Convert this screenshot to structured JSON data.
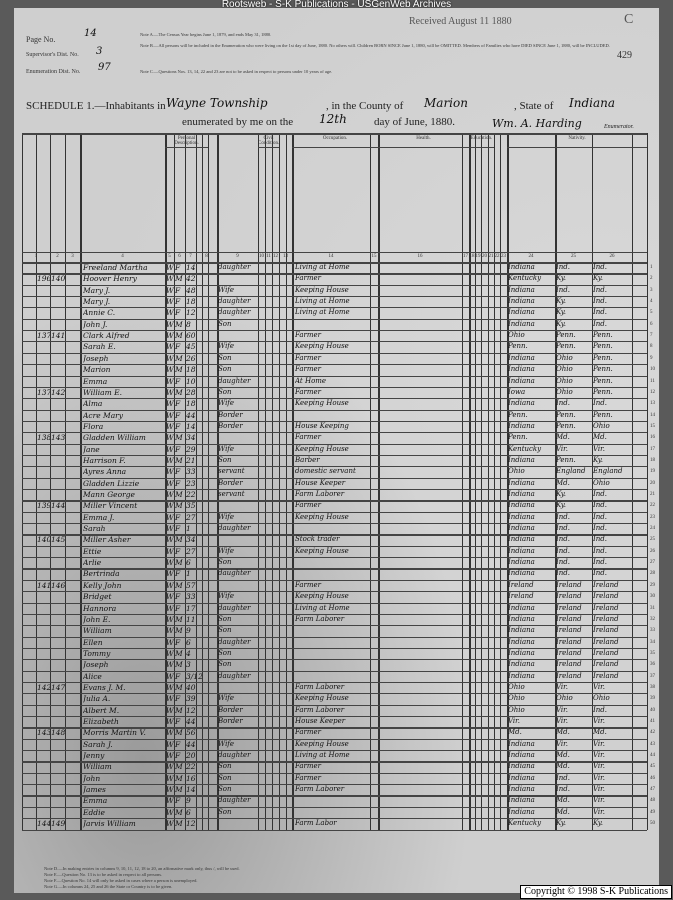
{
  "site_banner": "Rootsweb - S-K Publications - USGenWeb Archives",
  "copyright": "Copyright © 1998 S-K Publications",
  "header": {
    "page_no_label": "Page No.",
    "page_no": "14",
    "supervisor_label": "Supervisor's Dist. No.",
    "supervisor_no": "3",
    "enumeration_label": "Enumeration Dist. No.",
    "enumeration_no": "97",
    "received_stamp": "Received August 11 1880",
    "corner_letter": "C",
    "stamped_page": "429",
    "note_a": "Note A.—The Census Year begins June 1, 1879, and ends May 31, 1880.",
    "note_b": "Note B.—All persons will be included in the Enumeration who were living on the 1st day of June, 1880. No others will. Children BORN SINCE June 1, 1880, will be OMITTED. Members of Families who have DIED SINCE June 1, 1880, will be INCLUDED.",
    "note_c": "Note C.—Questions Nos. 13, 14, 22 and 23 are not to be asked in respect to persons under 10 years of age.",
    "schedule_label": "SCHEDULE 1.—Inhabitants in",
    "township": "Wayne Township",
    "county_label": ", in the County of",
    "county": "Marion",
    "state_label": ", State of",
    "state": "Indiana",
    "enumerated_label": "enumerated by me on the",
    "day": "12th",
    "date_suffix": "day of June, 1880.",
    "enumerator_signature": "Wm. A. Harding",
    "enumerator_label": "Enumerator."
  },
  "column_groups": {
    "personal": "Personal Description.",
    "civil": "Civil Condition.",
    "occupation": "Occupation.",
    "health": "Health.",
    "education": "Education.",
    "nativity": "Nativity."
  },
  "column_numbers": [
    "1",
    "2",
    "3",
    "4",
    "5",
    "6",
    "7",
    "8",
    "9",
    "10",
    "11",
    "12",
    "13",
    "14",
    "15",
    "16",
    "17",
    "18",
    "19",
    "20",
    "21",
    "22",
    "23",
    "24",
    "25",
    "26"
  ],
  "rows": [
    [
      "",
      "",
      "Freeland Martha",
      "W",
      "F",
      "14",
      "daughter",
      "Living at Home",
      "Indiana",
      "Ind.",
      "Ind."
    ],
    [
      "196",
      "140",
      "Hoover Henry",
      "W",
      "M",
      "42",
      "",
      "Farmer",
      "Kentucky",
      "Ky.",
      "Ky."
    ],
    [
      "",
      "",
      "Mary J.",
      "W",
      "F",
      "48",
      "Wife",
      "Keeping House",
      "Indiana",
      "Ind.",
      "Ind."
    ],
    [
      "",
      "",
      "Mary J.",
      "W",
      "F",
      "18",
      "daughter",
      "Living at Home",
      "Indiana",
      "Ky.",
      "Ind."
    ],
    [
      "",
      "",
      "Annie C.",
      "W",
      "F",
      "12",
      "daughter",
      "Living at Home",
      "Indiana",
      "Ky.",
      "Ind."
    ],
    [
      "",
      "",
      "John J.",
      "W",
      "M",
      "8",
      "Son",
      "",
      "Indiana",
      "Ky.",
      "Ind."
    ],
    [
      "137",
      "141",
      "Clark Alfred",
      "W",
      "M",
      "60",
      "",
      "Farmer",
      "Ohio",
      "Penn.",
      "Penn."
    ],
    [
      "",
      "",
      "Sarah E.",
      "W",
      "F",
      "45",
      "Wife",
      "Keeping House",
      "Penn.",
      "Penn.",
      "Penn."
    ],
    [
      "",
      "",
      "Joseph",
      "W",
      "M",
      "26",
      "Son",
      "Farmer",
      "Indiana",
      "Ohio",
      "Penn."
    ],
    [
      "",
      "",
      "Marion",
      "W",
      "M",
      "18",
      "Son",
      "Farmer",
      "Indiana",
      "Ohio",
      "Penn."
    ],
    [
      "",
      "",
      "Emma",
      "W",
      "F",
      "10",
      "daughter",
      "At Home",
      "Indiana",
      "Ohio",
      "Penn."
    ],
    [
      "137",
      "142",
      "William E.",
      "W",
      "M",
      "28",
      "Son",
      "Farmer",
      "Iowa",
      "Ohio",
      "Penn."
    ],
    [
      "",
      "",
      "Alma",
      "W",
      "F",
      "18",
      "Wife",
      "Keeping House",
      "Indiana",
      "Ind.",
      "Ind."
    ],
    [
      "",
      "",
      "Acre Mary",
      "W",
      "F",
      "44",
      "Border",
      "",
      "Penn.",
      "Penn.",
      "Penn."
    ],
    [
      "",
      "",
      "Flora",
      "W",
      "F",
      "14",
      "Border",
      "House Keeping",
      "Indiana",
      "Penn.",
      "Ohio"
    ],
    [
      "138",
      "143",
      "Gladden William",
      "W",
      "M",
      "34",
      "",
      "Farmer",
      "Penn.",
      "Md.",
      "Md."
    ],
    [
      "",
      "",
      "Jane",
      "W",
      "F",
      "29",
      "Wife",
      "Keeping House",
      "Kentucky",
      "Vir.",
      "Vir."
    ],
    [
      "",
      "",
      "Harrison F.",
      "W",
      "M",
      "21",
      "Son",
      "Barber",
      "Indiana",
      "Penn.",
      "Ky."
    ],
    [
      "",
      "",
      "Ayres Anna",
      "W",
      "F",
      "33",
      "servant",
      "domestic servant",
      "Ohio",
      "England",
      "England"
    ],
    [
      "",
      "",
      "Gladden Lizzie",
      "W",
      "F",
      "23",
      "Border",
      "House Keeper",
      "Indiana",
      "Md.",
      "Ohio"
    ],
    [
      "",
      "",
      "Mann George",
      "W",
      "M",
      "22",
      "servant",
      "Farm Laborer",
      "Indiana",
      "Ky.",
      "Ind."
    ],
    [
      "139",
      "144",
      "Miller Vincent",
      "W",
      "M",
      "35",
      "",
      "Farmer",
      "Indiana",
      "Ky.",
      "Ind."
    ],
    [
      "",
      "",
      "Emma J.",
      "W",
      "F",
      "27",
      "Wife",
      "Keeping House",
      "Indiana",
      "Ind.",
      "Ind."
    ],
    [
      "",
      "",
      "Sarah",
      "W",
      "F",
      "1",
      "daughter",
      "",
      "Indiana",
      "Ind.",
      "Ind."
    ],
    [
      "140",
      "145",
      "Miller Asher",
      "W",
      "M",
      "34",
      "",
      "Stock trader",
      "Indiana",
      "Ind.",
      "Ind."
    ],
    [
      "",
      "",
      "Ettie",
      "W",
      "F",
      "27",
      "Wife",
      "Keeping House",
      "Indiana",
      "Ind.",
      "Ind."
    ],
    [
      "",
      "",
      "Arlie",
      "W",
      "M",
      "6",
      "Son",
      "",
      "Indiana",
      "Ind.",
      "Ind."
    ],
    [
      "",
      "",
      "Bertrinda",
      "W",
      "F",
      "1",
      "daughter",
      "",
      "Indiana",
      "Ind.",
      "Ind."
    ],
    [
      "141",
      "146",
      "Kelly John",
      "W",
      "M",
      "57",
      "",
      "Farmer",
      "Ireland",
      "Ireland",
      "Ireland"
    ],
    [
      "",
      "",
      "Bridget",
      "W",
      "F",
      "33",
      "Wife",
      "Keeping House",
      "Ireland",
      "Ireland",
      "Ireland"
    ],
    [
      "",
      "",
      "Hannora",
      "W",
      "F",
      "17",
      "daughter",
      "Living at Home",
      "Indiana",
      "Ireland",
      "Ireland"
    ],
    [
      "",
      "",
      "John E.",
      "W",
      "M",
      "11",
      "Son",
      "Farm Laborer",
      "Indiana",
      "Ireland",
      "Ireland"
    ],
    [
      "",
      "",
      "William",
      "W",
      "M",
      "9",
      "Son",
      "",
      "Indiana",
      "Ireland",
      "Ireland"
    ],
    [
      "",
      "",
      "Ellen",
      "W",
      "F",
      "6",
      "daughter",
      "",
      "Indiana",
      "Ireland",
      "Ireland"
    ],
    [
      "",
      "",
      "Tommy",
      "W",
      "M",
      "4",
      "Son",
      "",
      "Indiana",
      "Ireland",
      "Ireland"
    ],
    [
      "",
      "",
      "Joseph",
      "W",
      "M",
      "3",
      "Son",
      "",
      "Indiana",
      "Ireland",
      "Ireland"
    ],
    [
      "",
      "",
      "Alice",
      "W",
      "F",
      "3/12 Mar",
      "daughter",
      "",
      "Indiana",
      "Ireland",
      "Ireland"
    ],
    [
      "142",
      "147",
      "Evans J. M.",
      "W",
      "M",
      "40",
      "",
      "Farm Laborer",
      "Ohio",
      "Vir.",
      "Vir."
    ],
    [
      "",
      "",
      "Julia A.",
      "W",
      "F",
      "39",
      "Wife",
      "Keeping House",
      "Ohio",
      "Ohio",
      "Ohio"
    ],
    [
      "",
      "",
      "Albert M.",
      "W",
      "M",
      "12",
      "Border",
      "Farm Laborer",
      "Ohio",
      "Vir.",
      "Ind."
    ],
    [
      "",
      "",
      "Elizabeth",
      "W",
      "F",
      "44",
      "Border",
      "House Keeper",
      "Vir.",
      "Vir.",
      "Vir."
    ],
    [
      "143",
      "148",
      "Morris Martin V.",
      "W",
      "M",
      "56",
      "",
      "Farmer",
      "Md.",
      "Md.",
      "Md."
    ],
    [
      "",
      "",
      "Sarah J.",
      "W",
      "F",
      "44",
      "Wife",
      "Keeping House",
      "Indiana",
      "Vir.",
      "Vir."
    ],
    [
      "",
      "",
      "Jenny",
      "W",
      "F",
      "20",
      "daughter",
      "Living at Home",
      "Indiana",
      "Md.",
      "Vir."
    ],
    [
      "",
      "",
      "William",
      "W",
      "M",
      "22",
      "Son",
      "Farmer",
      "Indiana",
      "Md.",
      "Vir."
    ],
    [
      "",
      "",
      "John",
      "W",
      "M",
      "16",
      "Son",
      "Farmer",
      "Indiana",
      "Ind.",
      "Vir."
    ],
    [
      "",
      "",
      "James",
      "W",
      "M",
      "14",
      "Son",
      "Farm Laborer",
      "Indiana",
      "Ind.",
      "Vir."
    ],
    [
      "",
      "",
      "Emma",
      "W",
      "F",
      "9",
      "daughter",
      "",
      "Indiana",
      "Md.",
      "Vir."
    ],
    [
      "",
      "",
      "Eddie",
      "W",
      "M",
      "6",
      "Son",
      "",
      "Indiana",
      "Md.",
      "Vir."
    ],
    [
      "144",
      "149",
      "Jarvis William",
      "W",
      "M",
      "12",
      "",
      "Farm Labor",
      "Kentucky",
      "Ky.",
      "Ky."
    ]
  ],
  "footer_notes": [
    "Note D.—In making entries in columns 9, 10, 11, 12, 18 to 20, an affirmative mark only, thus /, will be used.",
    "Note E.—Question No. 13 is to be asked in respect to all persons.",
    "Note F.—Question No. 14 will only be asked in cases where a person is unemployed.",
    "Note G.—In columns 24, 25 and 26 the State or Country is to be given."
  ]
}
